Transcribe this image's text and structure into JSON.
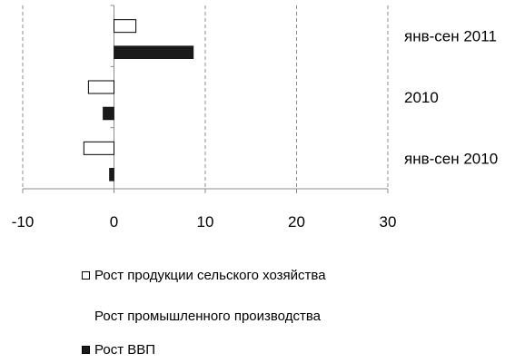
{
  "chart_data": {
    "type": "bar",
    "orientation": "horizontal",
    "categories": [
      "янв-сен 2010",
      "2010",
      "янв-сен 2011"
    ],
    "series": [
      {
        "name": "Рост ВВП",
        "values": [
          -0.5,
          -1.2,
          8.7
        ],
        "color": "#1a1a1a"
      },
      {
        "name": "Рост промышленного производства",
        "values": [
          null,
          null,
          null
        ],
        "color": "none"
      },
      {
        "name": "Рост продукции сельского хозяйства",
        "values": [
          -3.3,
          -2.8,
          2.4
        ],
        "color": "#ffffff"
      }
    ],
    "xlim": [
      -10,
      30
    ],
    "xticks": [
      "-10",
      "0",
      "10",
      "20",
      "30"
    ],
    "grid": "vertical-dashed",
    "legend_position": "bottom",
    "title": "",
    "xlabel": "",
    "ylabel": ""
  },
  "legend": {
    "items": [
      {
        "label": "Рост продукции сельского хозяйства",
        "swatch": "hollow"
      },
      {
        "label": "Рост промышленного производства",
        "swatch": "none"
      },
      {
        "label": "Рост ВВП",
        "swatch": "filled"
      }
    ]
  }
}
